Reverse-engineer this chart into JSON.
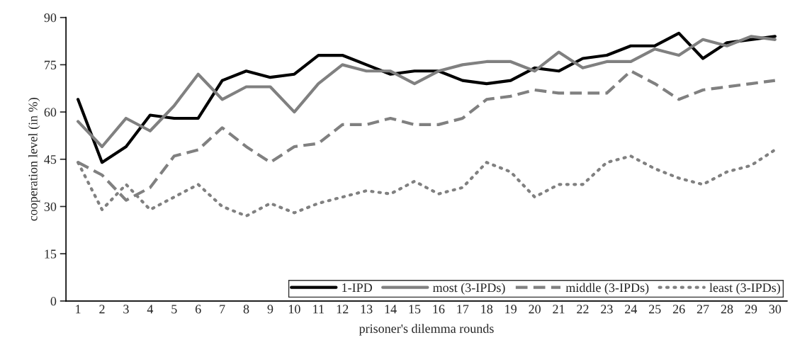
{
  "chart_data": {
    "type": "line",
    "xlabel": "prisoner's dilemma rounds",
    "ylabel": "cooperation level (in %)",
    "categories": [
      "1",
      "2",
      "3",
      "4",
      "5",
      "6",
      "7",
      "8",
      "9",
      "10",
      "11",
      "12",
      "13",
      "14",
      "15",
      "16",
      "17",
      "18",
      "19",
      "20",
      "21",
      "22",
      "23",
      "24",
      "25",
      "26",
      "27",
      "28",
      "29",
      "30"
    ],
    "ylim": [
      0,
      90
    ],
    "yticks": [
      0,
      15,
      30,
      45,
      60,
      75,
      90
    ],
    "grid": false,
    "legend": "bottom right",
    "series": [
      {
        "name": "1-IPD",
        "color": "#000000",
        "line_style": "solid",
        "values": [
          64,
          44,
          49,
          59,
          58,
          58,
          70,
          73,
          71,
          72,
          78,
          78,
          75,
          72,
          73,
          73,
          70,
          69,
          70,
          74,
          73,
          77,
          78,
          81,
          81,
          85,
          77,
          82,
          83,
          84
        ]
      },
      {
        "name": "most (3-IPDs)",
        "color": "#808080",
        "line_style": "solid",
        "values": [
          57,
          49,
          58,
          54,
          62,
          72,
          64,
          68,
          68,
          60,
          69,
          75,
          73,
          73,
          69,
          73,
          75,
          76,
          76,
          73,
          79,
          74,
          76,
          76,
          80,
          78,
          83,
          81,
          84,
          83
        ]
      },
      {
        "name": "middle (3-IPDs)",
        "color": "#808080",
        "line_style": "dashed",
        "values": [
          44,
          40,
          32,
          36,
          46,
          48,
          55,
          49,
          44,
          49,
          50,
          56,
          56,
          58,
          56,
          56,
          58,
          64,
          65,
          67,
          66,
          66,
          66,
          73,
          69,
          64,
          67,
          68,
          69,
          70
        ]
      },
      {
        "name": "least (3-IPDs)",
        "color": "#808080",
        "line_style": "dotted",
        "values": [
          44,
          29,
          37,
          29,
          33,
          37,
          30,
          27,
          31,
          28,
          31,
          33,
          35,
          34,
          38,
          34,
          36,
          44,
          41,
          33,
          37,
          37,
          44,
          46,
          42,
          39,
          37,
          41,
          43,
          48
        ]
      }
    ]
  }
}
